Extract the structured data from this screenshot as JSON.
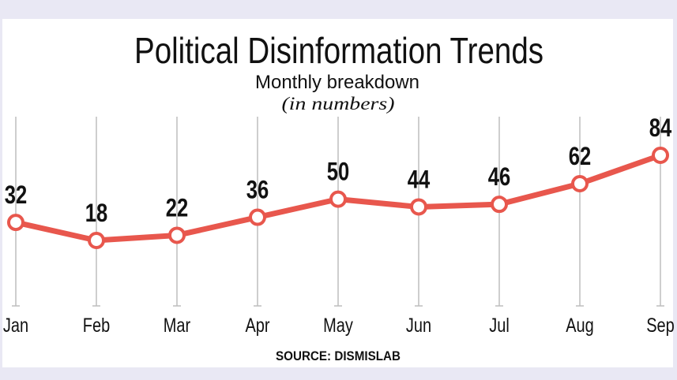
{
  "chart_data": {
    "type": "line",
    "title": "Political Disinformation Trends",
    "subtitle": "Monthly breakdown",
    "unit_note": "(in numbers)",
    "source": "SOURCE: DISMISLAB",
    "categories": [
      "Jan",
      "Feb",
      "Mar",
      "Apr",
      "May",
      "Jun",
      "Jul",
      "Aug",
      "Sep"
    ],
    "values": [
      32,
      18,
      22,
      36,
      50,
      44,
      46,
      62,
      84
    ],
    "data_labels": true,
    "grid": "vertical",
    "line_color": "#e8574d",
    "background_color": "#e9e8f4"
  }
}
